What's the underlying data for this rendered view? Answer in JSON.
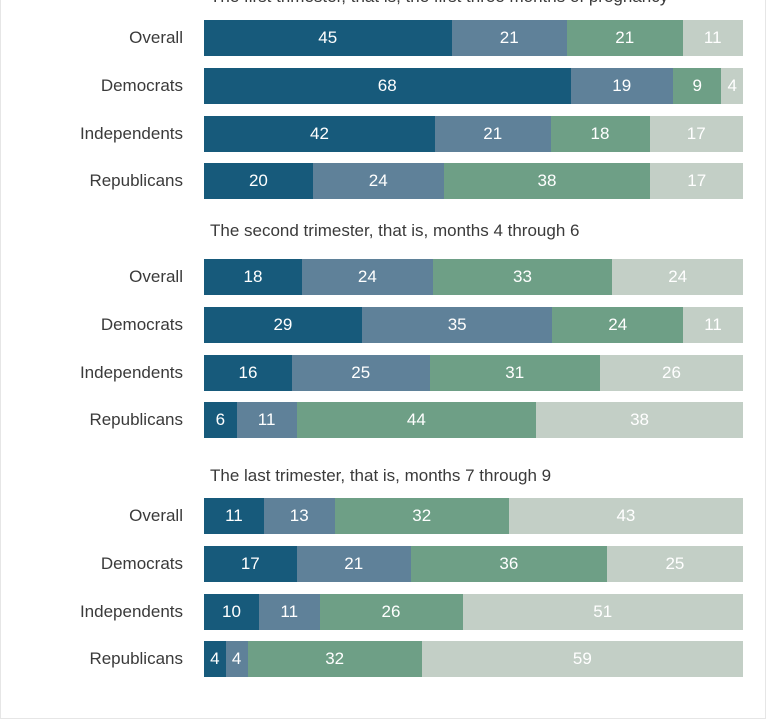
{
  "chart_data": {
    "type": "bar",
    "orientation": "horizontal",
    "stacked": true,
    "colors": [
      "#175a7b",
      "#5f8199",
      "#6e9f86",
      "#c3cfc6"
    ],
    "categories": [
      "Overall",
      "Democrats",
      "Independents",
      "Republicans"
    ],
    "panels": [
      {
        "title": "The first trimester, that is, the first three months of pregnancy",
        "rows": [
          {
            "label": "Overall",
            "values": [
              45,
              21,
              21,
              11
            ]
          },
          {
            "label": "Democrats",
            "values": [
              68,
              19,
              9,
              4
            ]
          },
          {
            "label": "Independents",
            "values": [
              42,
              21,
              18,
              17
            ]
          },
          {
            "label": "Republicans",
            "values": [
              20,
              24,
              38,
              17
            ]
          }
        ]
      },
      {
        "title": "The second trimester, that is, months 4 through 6",
        "rows": [
          {
            "label": "Overall",
            "values": [
              18,
              24,
              33,
              24
            ]
          },
          {
            "label": "Democrats",
            "values": [
              29,
              35,
              24,
              11
            ]
          },
          {
            "label": "Independents",
            "values": [
              16,
              25,
              31,
              26
            ]
          },
          {
            "label": "Republicans",
            "values": [
              6,
              11,
              44,
              38
            ]
          }
        ]
      },
      {
        "title": "The last trimester, that is, months 7 through 9",
        "rows": [
          {
            "label": "Overall",
            "values": [
              11,
              13,
              32,
              43
            ]
          },
          {
            "label": "Democrats",
            "values": [
              17,
              21,
              36,
              25
            ]
          },
          {
            "label": "Independents",
            "values": [
              10,
              11,
              26,
              51
            ]
          },
          {
            "label": "Republicans",
            "values": [
              4,
              4,
              32,
              59
            ]
          }
        ]
      }
    ],
    "grid": false,
    "legend": "none"
  }
}
